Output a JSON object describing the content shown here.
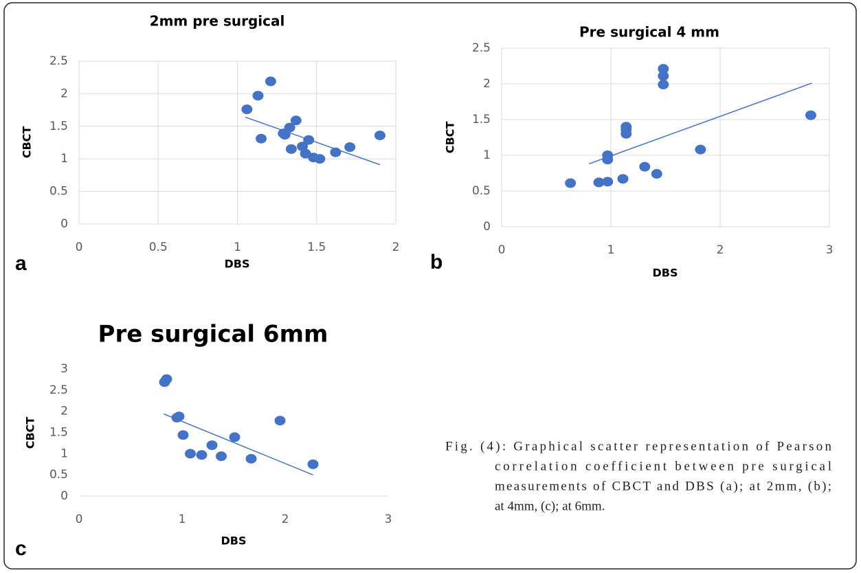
{
  "chart_data": [
    {
      "type": "scatter",
      "panel_label": "a",
      "title": "2mm pre surgical",
      "xlabel": "DBS",
      "ylabel": "CBCT",
      "color": "#4472c4",
      "grid": true,
      "x": [
        1.06,
        1.13,
        1.21,
        1.15,
        1.37,
        1.33,
        1.29,
        1.3,
        1.34,
        1.41,
        1.45,
        1.43,
        1.48,
        1.52,
        1.62,
        1.71,
        1.9
      ],
      "y": [
        1.76,
        1.97,
        2.19,
        1.31,
        1.59,
        1.48,
        1.39,
        1.37,
        1.15,
        1.19,
        1.29,
        1.08,
        1.02,
        1.0,
        1.1,
        1.18,
        1.36
      ],
      "trendline": {
        "x": [
          1.05,
          1.9
        ],
        "y": [
          1.64,
          0.91
        ]
      },
      "xlim": [
        0,
        2
      ],
      "ylim": [
        0,
        2.5
      ],
      "xticks": [
        0,
        0.5,
        1,
        1.5,
        2
      ],
      "yticks": [
        0,
        0.5,
        1,
        1.5,
        2,
        2.5
      ]
    },
    {
      "type": "scatter",
      "panel_label": "b",
      "title": "Pre surgical 4 mm",
      "xlabel": "DBS",
      "ylabel": "CBCT",
      "color": "#4472c4",
      "grid": true,
      "x": [
        0.63,
        0.89,
        0.97,
        0.97,
        0.97,
        1.11,
        1.14,
        1.14,
        1.14,
        1.31,
        1.42,
        1.48,
        1.48,
        1.48,
        1.82,
        2.83
      ],
      "y": [
        0.61,
        0.62,
        0.63,
        1.0,
        0.94,
        0.67,
        1.4,
        1.36,
        1.3,
        0.84,
        0.74,
        2.21,
        2.11,
        1.99,
        1.08,
        1.56
      ],
      "trendline": {
        "x": [
          0.8,
          2.84
        ],
        "y": [
          0.88,
          2.01
        ]
      },
      "xlim": [
        0,
        3
      ],
      "ylim": [
        0,
        2.5
      ],
      "xticks": [
        0,
        1,
        2,
        3
      ],
      "yticks": [
        0,
        0.5,
        1,
        1.5,
        2,
        2.5
      ]
    },
    {
      "type": "scatter",
      "panel_label": "c",
      "title": "Pre surgical 6mm",
      "xlabel": "DBS",
      "ylabel": "CBCT",
      "color": "#4472c4",
      "grid": false,
      "x": [
        0.83,
        0.85,
        0.95,
        0.97,
        1.01,
        1.08,
        1.19,
        1.29,
        1.38,
        1.51,
        1.67,
        1.95,
        2.27
      ],
      "y": [
        2.69,
        2.76,
        1.85,
        1.88,
        1.44,
        1.0,
        0.97,
        1.2,
        0.94,
        1.39,
        0.88,
        1.78,
        0.75
      ],
      "trendline": {
        "x": [
          0.82,
          2.27
        ],
        "y": [
          1.94,
          0.5
        ]
      },
      "xlim": [
        0,
        3
      ],
      "ylim": [
        0,
        3
      ],
      "xticks": [
        0,
        1,
        2,
        3
      ],
      "yticks": [
        0,
        0.5,
        1,
        1.5,
        2,
        2.5,
        3
      ]
    }
  ],
  "caption": [
    "Fig. (4): Graphical scatter representation of Pearson",
    "correlation coefficient between pre surgical",
    "measurements of CBCT and DBS (a); at 2mm, (b);",
    "at 4mm, (c); at 6mm."
  ]
}
